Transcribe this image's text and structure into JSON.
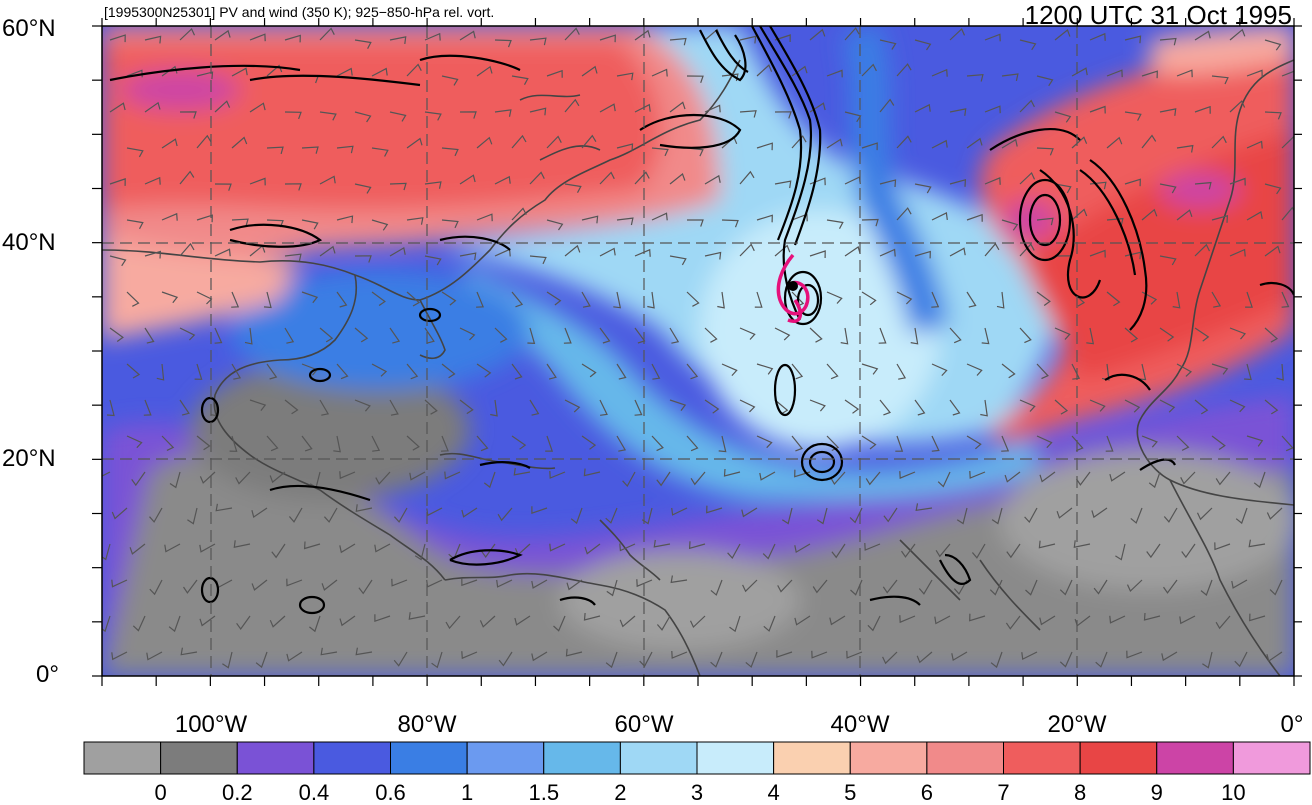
{
  "header": {
    "subtitle": "[1995300N25301] PV and wind (350 K); 925−850-hPa rel. vort.",
    "timestamp": "1200 UTC 31 Oct 1995"
  },
  "axes": {
    "lat_labels": [
      "60°N",
      "40°N",
      "20°N",
      "0°"
    ],
    "lon_labels": [
      "100°W",
      "80°W",
      "60°W",
      "40°W",
      "20°W",
      "0°"
    ],
    "lat_range": [
      0,
      60
    ],
    "lon_range": [
      -110,
      0
    ]
  },
  "colorbar": {
    "labels": [
      "0",
      "0.2",
      "0.4",
      "0.6",
      "1",
      "1.5",
      "2",
      "3",
      "4",
      "5",
      "6",
      "7",
      "8",
      "9",
      "10"
    ],
    "colors": [
      "#a0a0a0",
      "#7c7c7c",
      "#7a52d6",
      "#4a5ae0",
      "#3a7ee4",
      "#6b9af0",
      "#66b8ea",
      "#9fd8f5",
      "#c8ecfb",
      "#fad0b0",
      "#f7aaa0",
      "#f18a8a",
      "#ef5d5d",
      "#e84545",
      "#cc44a6",
      "#f09adc"
    ]
  },
  "overlays": {
    "contour_color": "#000000",
    "track_color": "#e6117b",
    "coast_color": "#444444",
    "storm_symbol": "tropical-cyclone-icon"
  }
}
